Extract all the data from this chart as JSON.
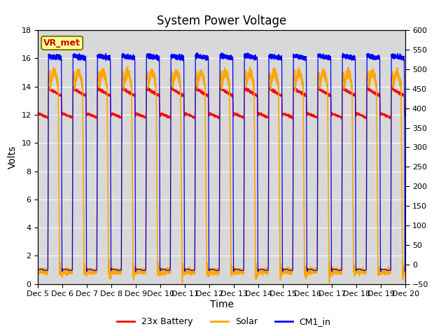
{
  "title": "System Power Voltage",
  "xlabel": "Time",
  "ylabel": "Volts",
  "ylim_left": [
    0,
    18
  ],
  "ylim_right": [
    -50,
    600
  ],
  "yticks_left": [
    0,
    2,
    4,
    6,
    8,
    10,
    12,
    14,
    16,
    18
  ],
  "yticks_right": [
    -50,
    0,
    50,
    100,
    150,
    200,
    250,
    300,
    350,
    400,
    450,
    500,
    550,
    600
  ],
  "xlim": [
    0,
    15
  ],
  "xtick_labels": [
    "Dec 5",
    "Dec 6",
    "Dec 7",
    "Dec 8",
    "Dec 9",
    "Dec 10",
    "Dec 11",
    "Dec 12",
    "Dec 13",
    "Dec 14",
    "Dec 15",
    "Dec 16",
    "Dec 17",
    "Dec 18",
    "Dec 19",
    "Dec 20"
  ],
  "xtick_positions": [
    0,
    1,
    2,
    3,
    4,
    5,
    6,
    7,
    8,
    9,
    10,
    11,
    12,
    13,
    14,
    15
  ],
  "colors": {
    "battery": "#FF0000",
    "solar": "#FFA500",
    "cm1_in": "#0000FF",
    "background": "#D8D8D8",
    "vr_met_bg": "#FFFF99",
    "vr_met_border": "#808000"
  },
  "legend_labels": [
    "23x Battery",
    "Solar",
    "CM1_in"
  ],
  "vr_met_text": "VR_met",
  "title_fontsize": 12,
  "axis_fontsize": 10,
  "tick_fontsize": 8,
  "legend_fontsize": 9
}
